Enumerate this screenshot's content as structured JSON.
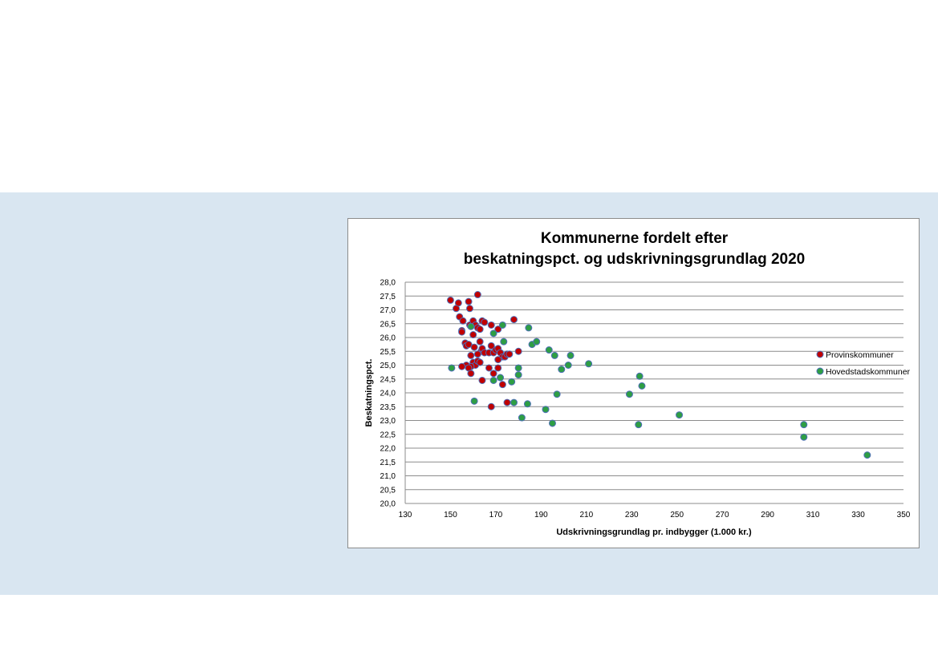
{
  "chart_data": {
    "type": "scatter",
    "title_line1": "Kommunerne fordelt efter",
    "title_line2": "beskatningspct. og udskrivningsgrundlag 2020",
    "xlabel": "Udskrivningsgrundlag pr. indbygger (1.000 kr.)",
    "ylabel": "Beskatningspct.",
    "xlim": [
      130,
      350
    ],
    "ylim": [
      20.0,
      28.0
    ],
    "x_ticks": [
      "130",
      "150",
      "170",
      "190",
      "210",
      "230",
      "250",
      "270",
      "290",
      "310",
      "330",
      "350"
    ],
    "y_ticks": [
      "20,0",
      "20,5",
      "21,0",
      "21,5",
      "22,0",
      "22,5",
      "23,0",
      "23,5",
      "24,0",
      "24,5",
      "25,0",
      "25,5",
      "26,0",
      "26,5",
      "27,0",
      "27,5",
      "28,0"
    ],
    "grid": "horizontal",
    "legend": "right",
    "series": [
      {
        "name": "Provinskommuner",
        "color": "#c00000",
        "edge": "#4f6fb8",
        "points": [
          [
            150,
            27.35
          ],
          [
            152.5,
            27.05
          ],
          [
            153.5,
            27.25
          ],
          [
            154,
            26.75
          ],
          [
            155,
            26.25
          ],
          [
            155.5,
            26.6
          ],
          [
            155,
            26.2
          ],
          [
            158,
            27.3
          ],
          [
            158.5,
            27.05
          ],
          [
            162,
            27.55
          ],
          [
            158.5,
            26.45
          ],
          [
            160,
            26.6
          ],
          [
            161,
            26.45
          ],
          [
            162,
            26.35
          ],
          [
            163,
            26.3
          ],
          [
            164,
            26.6
          ],
          [
            165,
            26.55
          ],
          [
            168,
            26.45
          ],
          [
            171,
            26.3
          ],
          [
            178,
            26.65
          ],
          [
            156.5,
            25.8
          ],
          [
            157,
            25.7
          ],
          [
            158,
            25.75
          ],
          [
            160.5,
            25.65
          ],
          [
            160,
            26.1
          ],
          [
            163,
            25.85
          ],
          [
            163.5,
            25.5
          ],
          [
            164,
            25.6
          ],
          [
            165,
            25.45
          ],
          [
            167,
            25.45
          ],
          [
            168,
            25.7
          ],
          [
            169,
            25.45
          ],
          [
            170,
            25.55
          ],
          [
            171,
            25.6
          ],
          [
            172,
            25.45
          ],
          [
            173,
            25.3
          ],
          [
            174,
            25.3
          ],
          [
            175,
            25.4
          ],
          [
            176,
            25.4
          ],
          [
            180,
            25.5
          ],
          [
            159,
            25.35
          ],
          [
            162,
            25.4
          ],
          [
            160,
            25.1
          ],
          [
            161,
            25.0
          ],
          [
            162,
            25.15
          ],
          [
            163,
            25.1
          ],
          [
            159,
            24.95
          ],
          [
            157,
            25.0
          ],
          [
            155,
            24.95
          ],
          [
            158,
            24.9
          ],
          [
            159,
            24.7
          ],
          [
            164,
            24.45
          ],
          [
            167,
            24.9
          ],
          [
            169,
            24.7
          ],
          [
            171,
            25.2
          ],
          [
            171,
            24.9
          ],
          [
            173,
            24.3
          ],
          [
            175,
            23.65
          ],
          [
            168,
            23.5
          ]
        ]
      },
      {
        "name": "Hovedstadskommuner",
        "color": "#2e9e44",
        "edge": "#4f6fb8",
        "points": [
          [
            150.5,
            24.9
          ],
          [
            159,
            26.4
          ],
          [
            160.5,
            23.7
          ],
          [
            169,
            26.15
          ],
          [
            173,
            26.45
          ],
          [
            173.5,
            25.85
          ],
          [
            172,
            24.55
          ],
          [
            169,
            24.45
          ],
          [
            177,
            24.4
          ],
          [
            180,
            24.65
          ],
          [
            180,
            24.9
          ],
          [
            178,
            23.65
          ],
          [
            181.5,
            23.1
          ],
          [
            184,
            23.6
          ],
          [
            184.5,
            26.35
          ],
          [
            186,
            25.75
          ],
          [
            188,
            25.85
          ],
          [
            193.5,
            25.55
          ],
          [
            196,
            25.35
          ],
          [
            197,
            23.95
          ],
          [
            199,
            24.85
          ],
          [
            202,
            25.0
          ],
          [
            203,
            25.35
          ],
          [
            192,
            23.4
          ],
          [
            195,
            22.9
          ],
          [
            211,
            25.05
          ],
          [
            229,
            23.95
          ],
          [
            233,
            22.85
          ],
          [
            233.5,
            24.6
          ],
          [
            234.5,
            24.25
          ],
          [
            251,
            23.2
          ],
          [
            306,
            22.85
          ],
          [
            306,
            22.4
          ],
          [
            334,
            21.75
          ]
        ]
      }
    ]
  }
}
